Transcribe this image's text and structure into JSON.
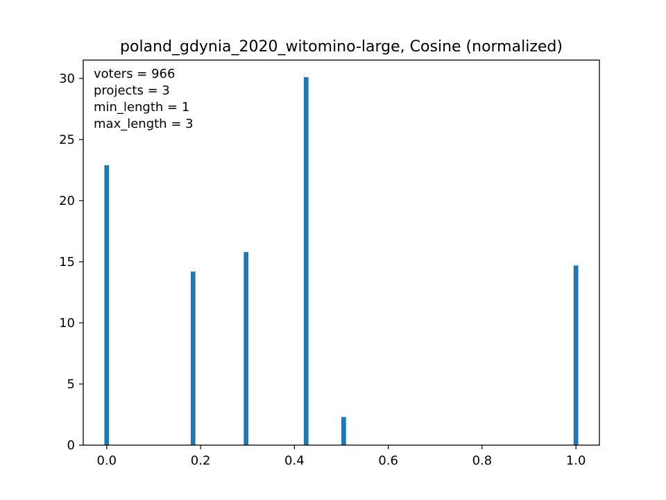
{
  "chart_data": {
    "type": "bar",
    "title": "poland_gdynia_2020_witomino-large, Cosine (normalized)",
    "xlabel": "",
    "ylabel": "",
    "xlim": [
      -0.05,
      1.05
    ],
    "ylim": [
      0,
      31.5
    ],
    "x_ticks": [
      0.0,
      0.2,
      0.4,
      0.6,
      0.8,
      1.0
    ],
    "x_tick_labels": [
      "0.0",
      "0.2",
      "0.4",
      "0.6",
      "0.8",
      "1.0"
    ],
    "y_ticks": [
      0,
      5,
      10,
      15,
      20,
      25,
      30
    ],
    "y_tick_labels": [
      "0",
      "5",
      "10",
      "15",
      "20",
      "25",
      "30"
    ],
    "bar_width": 0.01,
    "x": [
      0.0,
      0.184,
      0.297,
      0.425,
      0.505,
      1.0
    ],
    "values": [
      22.9,
      14.2,
      15.8,
      30.1,
      2.3,
      14.7
    ],
    "color": "#1f77b4",
    "grid": false,
    "annotations": [
      "voters = 966",
      "projects = 3",
      "min_length = 1",
      "max_length = 3"
    ]
  }
}
